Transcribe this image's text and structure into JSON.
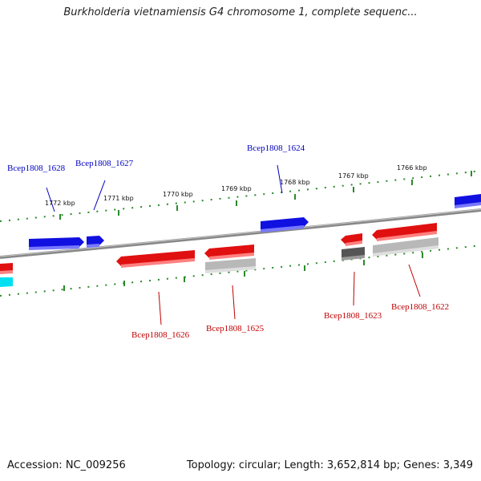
{
  "title": "Burkholderia vietnamiensis G4 chromosome 1, complete sequenc...",
  "footer": {
    "accession": "Accession: NC_009256",
    "summary": "Topology: circular; Length: 3,652,814 bp; Genes: 3,349"
  },
  "scale_labels": [
    {
      "text": "1772 kbp",
      "kbp": 1772
    },
    {
      "text": "1771 kbp",
      "kbp": 1771
    },
    {
      "text": "1770 kbp",
      "kbp": 1770
    },
    {
      "text": "1769 kbp",
      "kbp": 1769
    },
    {
      "text": "1768 kbp",
      "kbp": 1768
    },
    {
      "text": "1767 kbp",
      "kbp": 1767
    },
    {
      "text": "1766 kbp",
      "kbp": 1766
    }
  ],
  "gene_labels": [
    {
      "text": "Bcep1808_1628",
      "strand": "forward"
    },
    {
      "text": "Bcep1808_1627",
      "strand": "forward"
    },
    {
      "text": "Bcep1808_1624",
      "strand": "forward"
    },
    {
      "text": "Bcep1808_1626",
      "strand": "reverse"
    },
    {
      "text": "Bcep1808_1625",
      "strand": "reverse"
    },
    {
      "text": "Bcep1808_1623",
      "strand": "reverse"
    },
    {
      "text": "Bcep1808_1622",
      "strand": "reverse"
    }
  ],
  "colors": {
    "forward_gene": "#1010e0",
    "reverse_gene": "#e01010",
    "gray_gene": "#b8b8b8",
    "dark_gene": "#555555",
    "cyan_gene": "#00e0f0",
    "backbone": "#888888",
    "tick": "#2a8a2a",
    "forward_label": "#0000c0",
    "reverse_label": "#c00000"
  }
}
